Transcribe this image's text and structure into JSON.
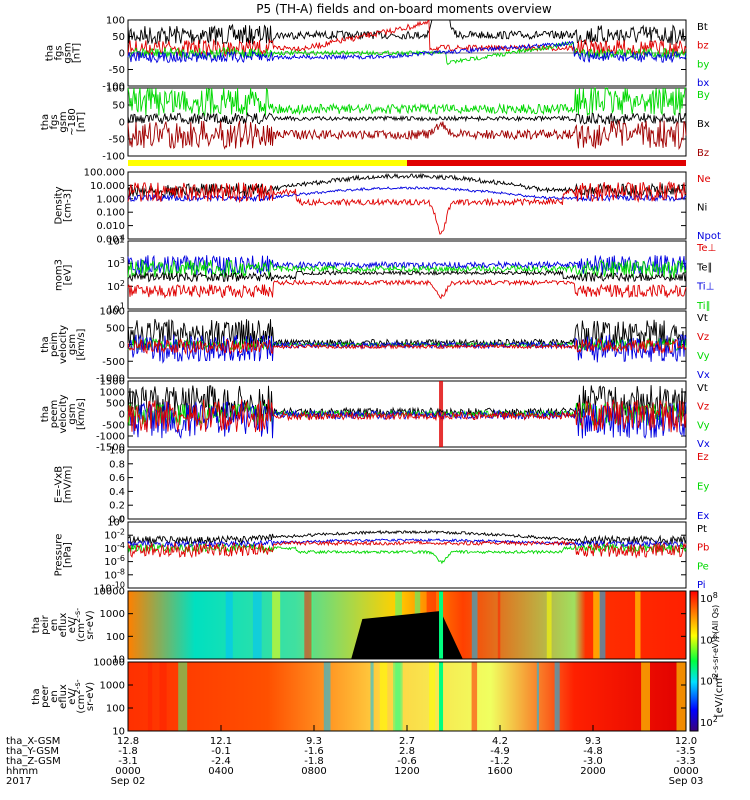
{
  "chart_data": {
    "type": "line",
    "title": "P5 (TH-A) fields and on-board moments overview",
    "colors": {
      "black": "#000000",
      "red": "#e00000",
      "green": "#00d800",
      "blue": "#0000e0",
      "darkred": "#a00000",
      "yellow": "#ffff00"
    },
    "xaxis": {
      "ephemeris_labels": [
        "tha_X-GSM",
        "tha_Y-GSM",
        "tha_Z-GSM",
        "hhmm",
        "2017"
      ],
      "x_gsm": [
        "12.8",
        "12.1",
        "9.3",
        "2.7",
        "4.2",
        "9.3",
        "12.0"
      ],
      "y_gsm": [
        "-1.8",
        "-0.1",
        "-1.6",
        "2.8",
        "-4.9",
        "-4.8",
        "-3.5"
      ],
      "z_gsm": [
        "-3.1",
        "-2.4",
        "-1.8",
        "-0.6",
        "-1.2",
        "-3.0",
        "-3.3"
      ],
      "hhmm": [
        "0000",
        "0400",
        "0800",
        "1200",
        "1600",
        "2000",
        "0000"
      ],
      "dates": [
        "Sep 02",
        "Sep 03"
      ]
    },
    "panels": [
      {
        "id": "fgs-gsm",
        "ylabel": [
          "tha",
          "fgs",
          "gsm",
          "[nT]"
        ],
        "ylim": [
          -100,
          100
        ],
        "yticks": [
          "100",
          "50",
          "0",
          "-50",
          "-100"
        ],
        "legend": [
          "Bt",
          "bz",
          "by",
          "bx"
        ]
      },
      {
        "id": "fgs-gse",
        "ylabel": [
          "tha",
          "fgs",
          "gsm",
          "~180",
          "[nT]"
        ],
        "ylim": [
          -125,
          125
        ],
        "yticks": [
          "100",
          "50",
          "0",
          "-50",
          "-100"
        ],
        "legend": [
          "By",
          "Bx",
          "Bz"
        ]
      },
      {
        "id": "density",
        "ylabel": [
          "Density",
          "[cm-3]"
        ],
        "yticks": [
          "100.000",
          "10.000",
          "1.000",
          "0.100",
          "0.010",
          "0.001"
        ],
        "legend": [
          "Ne",
          "Ni",
          "Npot"
        ]
      },
      {
        "id": "temperature",
        "ylabel": [
          "mom3",
          "[eV]"
        ],
        "yticks": [
          "10^4",
          "10^3",
          "10^2",
          "10^1"
        ],
        "legend": [
          "Te⊥",
          "Te∥",
          "Ti⊥",
          "Ti∥"
        ]
      },
      {
        "id": "peim-velocity",
        "ylabel": [
          "tha",
          "peim",
          "velocity",
          "gsm",
          "[km/s]"
        ],
        "ylim": [
          -1000,
          1000
        ],
        "yticks": [
          "1000",
          "500",
          "0",
          "-500",
          "-1000"
        ],
        "legend": [
          "Vt",
          "Vz",
          "Vy",
          "Vx"
        ]
      },
      {
        "id": "peem-velocity",
        "ylabel": [
          "tha",
          "peem",
          "velocity",
          "gsm",
          "[km/s]"
        ],
        "ylim": [
          -1500,
          1500
        ],
        "yticks": [
          "1500",
          "1000",
          "500",
          "0",
          "-500",
          "-1000",
          "-1500"
        ],
        "legend": [
          "Vt",
          "Vz",
          "Vy",
          "Vx"
        ]
      },
      {
        "id": "efield",
        "ylabel": [
          "E=-VxB",
          "[mV/m]"
        ],
        "ylim": [
          0,
          1
        ],
        "yticks": [
          "1.0",
          "0.8",
          "0.6",
          "0.4",
          "0.2",
          "0.0"
        ],
        "legend": [
          "Ez",
          "Ey",
          "Ex"
        ]
      },
      {
        "id": "pressure",
        "ylabel": [
          "Pressure",
          "[nPa]"
        ],
        "yticks": [
          "10^0",
          "10^-2",
          "10^-4",
          "10^-6",
          "10^-8",
          "10^-10"
        ],
        "legend": [
          "Pt",
          "Pb",
          "Pe",
          "Pi"
        ]
      },
      {
        "id": "peir-spec",
        "ylabel": [
          "tha",
          "peir",
          "en",
          "eflux",
          "eV/",
          "(cm^2-s-",
          "sr-eV)"
        ],
        "yticks": [
          "10000",
          "1000",
          "100",
          "10"
        ]
      },
      {
        "id": "peer-spec",
        "ylabel": [
          "tha",
          "peer",
          "en",
          "eflux",
          "eV/",
          "(cm^2-s-",
          "sr-eV)"
        ],
        "yticks": [
          "10000",
          "1000",
          "100",
          "10"
        ]
      }
    ],
    "colorbar": {
      "ticks": [
        "10^8",
        "10^6",
        "10^4",
        "10^2"
      ],
      "label": "[eV/(cm^2-s-sr-eV)] (All Qs)"
    },
    "mode_bar": {
      "segments": [
        {
          "from": 0,
          "to": 0.5,
          "color": "yellow"
        },
        {
          "from": 0.5,
          "to": 1,
          "color": "red"
        }
      ]
    }
  }
}
